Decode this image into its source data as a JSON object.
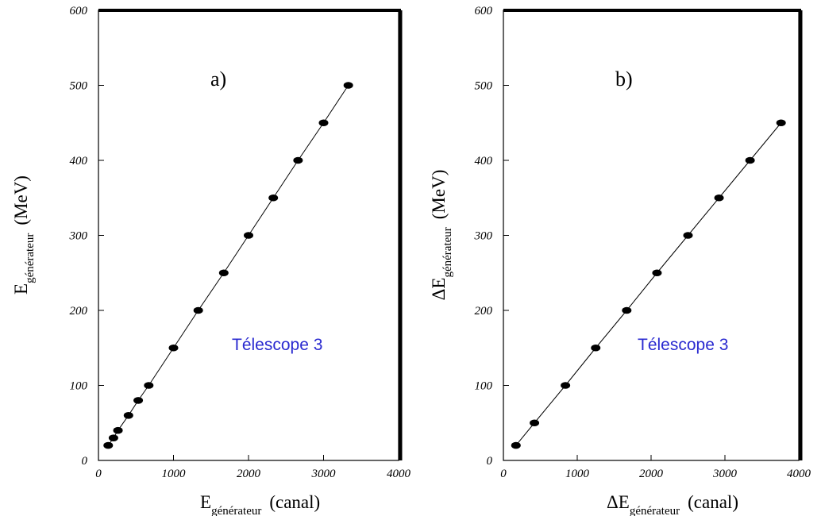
{
  "chart_data": [
    {
      "type": "scatter",
      "panel_label": "a)",
      "annotation": "Télescope 3",
      "xlabel": {
        "main": "E",
        "sub": "générateur",
        "unit": "(canal)"
      },
      "ylabel": {
        "main": "E",
        "sub": "générateur",
        "unit": "(MeV)"
      },
      "xlim": [
        0,
        4000
      ],
      "ylim": [
        0,
        600
      ],
      "xticks": [
        "0",
        "1000",
        "2000",
        "3000",
        "4000"
      ],
      "yticks": [
        "0",
        "100",
        "200",
        "300",
        "400",
        "500",
        "600"
      ],
      "grid": false,
      "fit_line": true,
      "series": [
        {
          "x": [
            130,
            200,
            260,
            400,
            530,
            670,
            1000,
            1330,
            1670,
            2000,
            2330,
            2660,
            3000,
            3330
          ],
          "y": [
            20,
            30,
            40,
            60,
            80,
            100,
            150,
            200,
            250,
            300,
            350,
            400,
            450,
            500
          ]
        }
      ]
    },
    {
      "type": "scatter",
      "panel_label": "b)",
      "annotation": "Télescope 3",
      "xlabel": {
        "main": "ΔE",
        "sub": "générateur",
        "unit": "(canal)"
      },
      "ylabel": {
        "main": "ΔE",
        "sub": "générateur",
        "unit": "(MeV)"
      },
      "xlim": [
        0,
        4000
      ],
      "ylim": [
        0,
        600
      ],
      "xticks": [
        "0",
        "1000",
        "2000",
        "3000",
        "4000"
      ],
      "yticks": [
        "0",
        "100",
        "200",
        "300",
        "400",
        "500",
        "600"
      ],
      "grid": false,
      "fit_line": true,
      "series": [
        {
          "x": [
            170,
            420,
            840,
            1250,
            1670,
            2080,
            2500,
            2920,
            3340,
            3760
          ],
          "y": [
            20,
            50,
            100,
            150,
            200,
            250,
            300,
            350,
            400,
            450
          ]
        }
      ]
    }
  ]
}
